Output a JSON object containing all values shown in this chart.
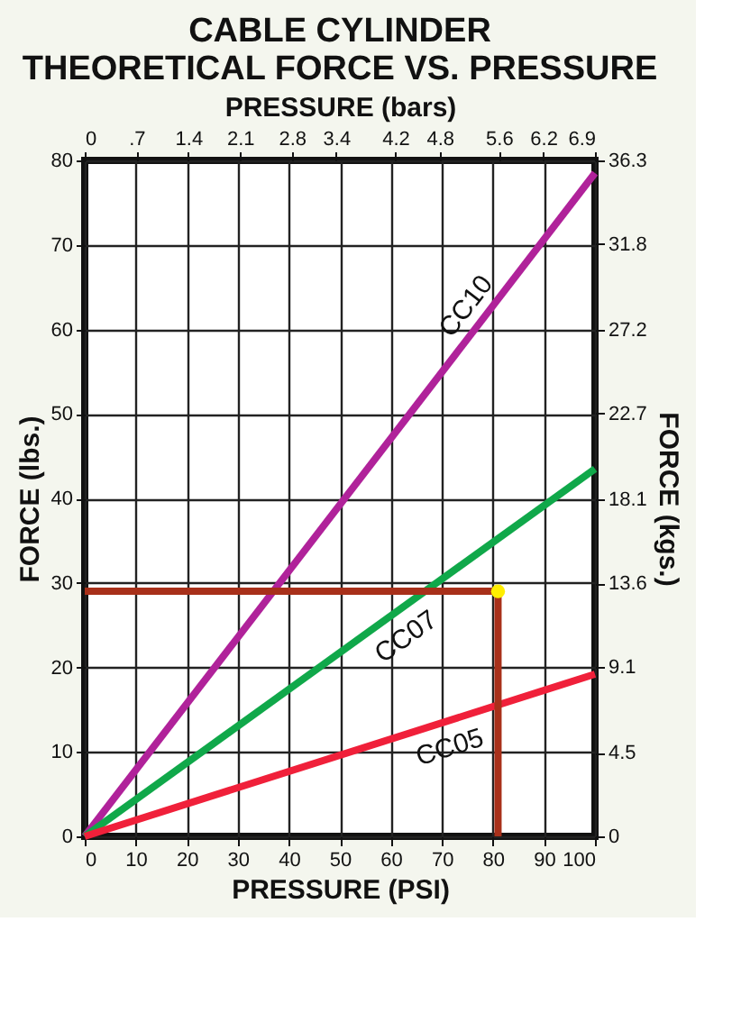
{
  "chart_data": {
    "type": "line",
    "title": "CABLE CYLINDER\nTHEORETICAL FORCE VS. PRESSURE",
    "xlabel": "PRESSURE (PSI)",
    "x2label": "PRESSURE (bars)",
    "ylabel": "FORCE (lbs.)",
    "y2label": "FORCE (kgs.)",
    "xlim": [
      0,
      100
    ],
    "xticks": [
      0,
      10,
      20,
      30,
      40,
      50,
      60,
      70,
      80,
      90,
      100
    ],
    "ylim": [
      0,
      80
    ],
    "yticks": [
      0,
      10,
      20,
      30,
      40,
      50,
      60,
      70,
      80
    ],
    "x2lim": [
      0,
      6.9
    ],
    "x2ticks": [
      0,
      {
        "value": 0.7,
        "label": ".7"
      },
      1.4,
      2.1,
      2.8,
      3.4,
      4.2,
      4.8,
      5.6,
      6.2,
      6.9
    ],
    "y2lim": [
      0,
      36.3
    ],
    "y2ticks": [
      0,
      4.5,
      9.1,
      13.6,
      18.1,
      22.7,
      27.2,
      31.8,
      36.3
    ],
    "grid": true,
    "legend": false,
    "line_style": "solid",
    "series": [
      {
        "name": "CC10",
        "color": "#b0229a",
        "x": [
          0,
          100
        ],
        "values": [
          0,
          78.5
        ]
      },
      {
        "name": "CC07",
        "color": "#10a84a",
        "x": [
          0,
          100
        ],
        "values": [
          0,
          43.5
        ]
      },
      {
        "name": "CC05",
        "color": "#f0203a",
        "x": [
          0,
          100
        ],
        "values": [
          0,
          19.2
        ]
      },
      {
        "color": "#a8301a",
        "x": [
          81,
          81
        ],
        "values": [
          0,
          29
        ]
      },
      {
        "color": "#a8301a",
        "x": [
          0,
          81
        ],
        "values": [
          29,
          29
        ]
      },
      {
        "type": "scatter",
        "marker": "circle",
        "color": "#ffee00",
        "x": [
          81
        ],
        "values": [
          29
        ]
      }
    ]
  }
}
